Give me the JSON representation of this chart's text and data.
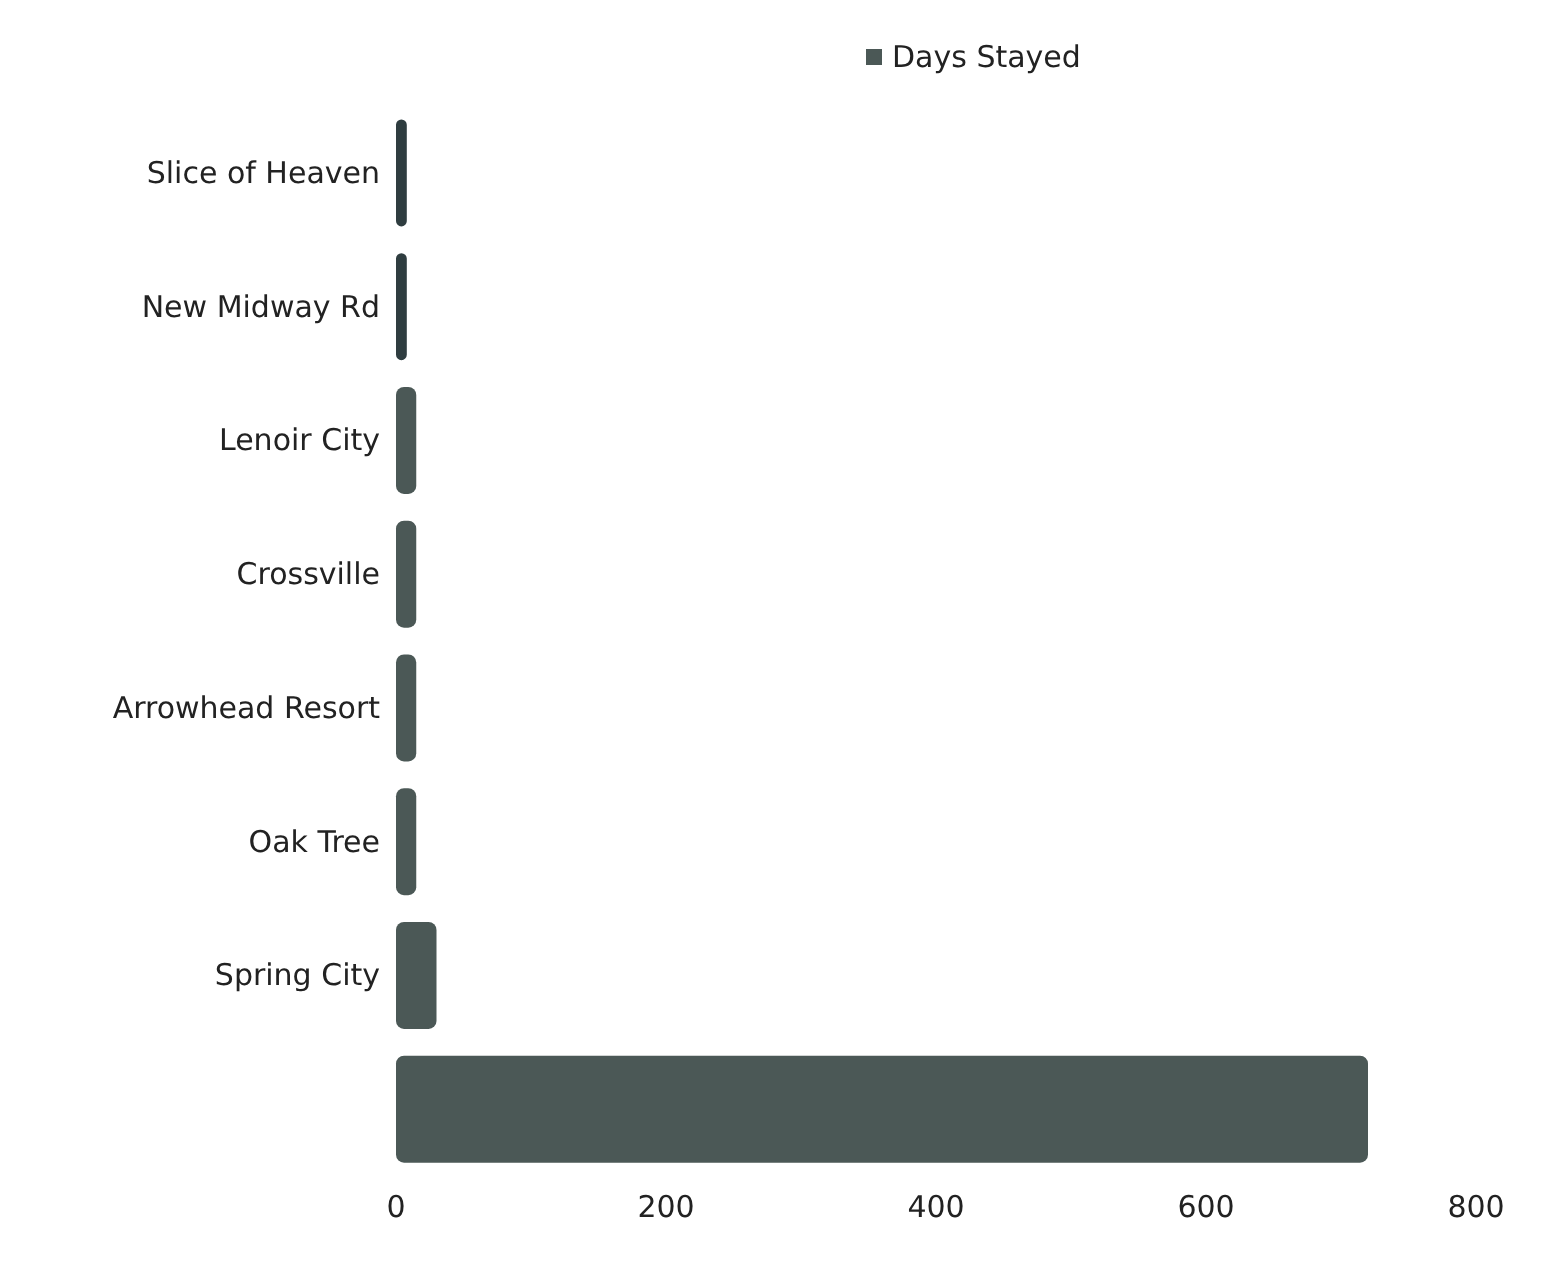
{
  "chart_data": {
    "type": "bar",
    "orientation": "horizontal",
    "categories": [
      "Slice of Heaven",
      "New Midway Rd",
      "Lenoir City",
      "Crossville",
      "Arrowhead Resort",
      "Oak Tree",
      "Spring City",
      null
    ],
    "series": [
      {
        "name": "Days Stayed",
        "color": "#4b5856",
        "colors": [
          "#2f3d40",
          "#2f3d40",
          "#4b5856",
          "#4b5856",
          "#4b5856",
          "#4b5856",
          "#4b5856",
          "#4b5856"
        ],
        "values": [
          8,
          8,
          15,
          15,
          15,
          15,
          30,
          720
        ]
      }
    ],
    "xlim": [
      0,
      800
    ],
    "xticks": [
      0,
      200,
      400,
      600,
      800
    ],
    "grid": false,
    "legend": "top"
  }
}
